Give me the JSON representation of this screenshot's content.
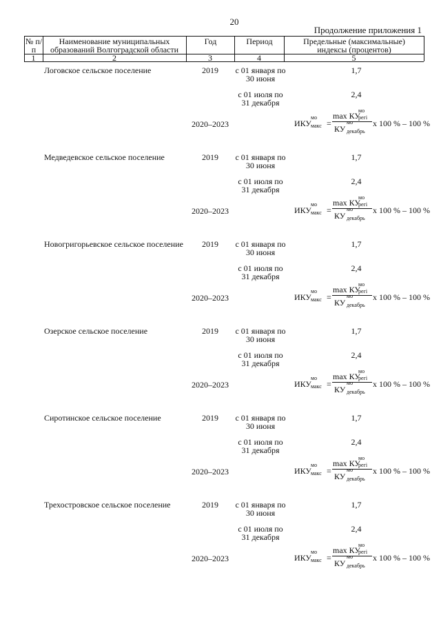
{
  "header": {
    "page_number": "20",
    "continuation": "Продолжение приложения 1"
  },
  "table": {
    "columns": [
      "№ п/п",
      "Наименование муниципальных образований Волгоградской области",
      "Год",
      "Период",
      "Предельные (максимальные) индексы (процентов)"
    ],
    "column_numbers": [
      "1",
      "2",
      "3",
      "4",
      "5"
    ],
    "formula": {
      "lhs": "ИКУ",
      "lhs_sup": "мо",
      "lhs_sub": "макс",
      "eq": "=",
      "num": "max КУ",
      "num_sup": "мо",
      "num_sub": "регi",
      "den": "КУ",
      "den_sup": "мо",
      "den_sub": "декабрь",
      "tail": "x 100 % – 100 %"
    },
    "rows": [
      {
        "name": "Логовское сельское поселение",
        "year": "2019",
        "period1": "с 01 января по 30 июня",
        "value1": "1,7",
        "period2": "с 01 июля по 31 декабря",
        "value2": "2,4",
        "year2": "2020–2023"
      },
      {
        "name": "Медведевское сельское поселение",
        "year": "2019",
        "period1": "с 01 января по 30 июня",
        "value1": "1,7",
        "period2": "с 01 июля по 31 декабря",
        "value2": "2,4",
        "year2": "2020–2023"
      },
      {
        "name": "Новогригорьевское сельское посе­ление",
        "year": "2019",
        "period1": "с 01 января по 30 июня",
        "value1": "1,7",
        "period2": "с 01 июля по 31 декабря",
        "value2": "2,4",
        "year2": "2020–2023"
      },
      {
        "name": "Озерское сельское поселение",
        "year": "2019",
        "period1": "с 01 января по 30 июня",
        "value1": "1,7",
        "period2": "с 01 июля по 31 декабря",
        "value2": "2,4",
        "year2": "2020–2023"
      },
      {
        "name": "Сиротинское сельское поселение",
        "year": "2019",
        "period1": "с 01 января по 30 июня",
        "value1": "1,7",
        "period2": "с 01 июля по 31 декабря",
        "value2": "2,4",
        "year2": "2020–2023"
      },
      {
        "name": "Трехостровское сельское поселение",
        "year": "2019",
        "period1": "с 01 января по 30 июня",
        "value1": "1,7",
        "period2": "с 01 июля по 31 декабря",
        "value2": "2,4",
        "year2": "2020–2023"
      }
    ]
  }
}
